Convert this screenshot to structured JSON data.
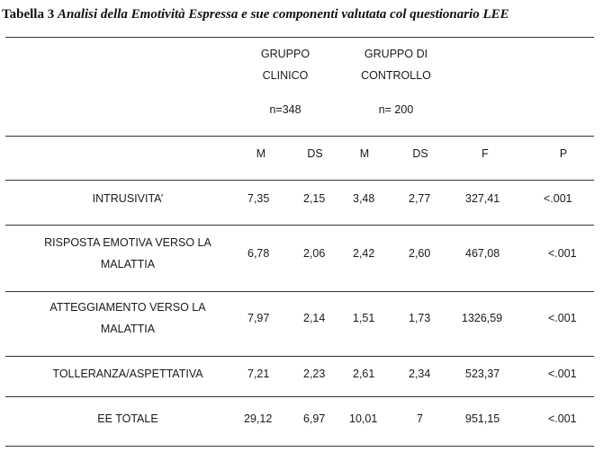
{
  "caption": {
    "label": "Tabella 3",
    "text": "Analisi della Emotività Espressa e sue componenti valutata col questionario LEE"
  },
  "groups": {
    "clinical_line1": "GRUPPO",
    "clinical_line2": "CLINICO",
    "clinical_n": "n=348",
    "control_line1": "GRUPPO DI",
    "control_line2": "CONTROLLO",
    "control_n": "n= 200"
  },
  "columns": [
    "M",
    "DS",
    "M",
    "DS",
    "F",
    "P"
  ],
  "rows": [
    {
      "label_lines": [
        "INTRUSIVITA’"
      ],
      "values": [
        "7,35",
        "2,15",
        "3,48",
        "2,77",
        "327,41",
        "<.001"
      ]
    },
    {
      "label_lines": [
        "RISPOSTA EMOTIVA VERSO LA",
        "MALATTIA"
      ],
      "values": [
        "6,78",
        "2,06",
        "2,42",
        "2,60",
        "467,08",
        "<.001"
      ]
    },
    {
      "label_lines": [
        "ATTEGGIAMENTO VERSO LA",
        "MALATTIA"
      ],
      "values": [
        "7,97",
        "2,14",
        "1,51",
        "1,73",
        "1326,59",
        "<.001"
      ]
    },
    {
      "label_lines": [
        "TOLLERANZA/ASPETTATIVA"
      ],
      "values": [
        "7,21",
        "2,23",
        "2,61",
        "2,34",
        "523,37",
        "<.001"
      ]
    },
    {
      "label_lines": [
        "EE TOTALE"
      ],
      "values": [
        "29,12",
        "6,97",
        "10,01",
        "7",
        "951,15",
        "<.001"
      ]
    }
  ]
}
